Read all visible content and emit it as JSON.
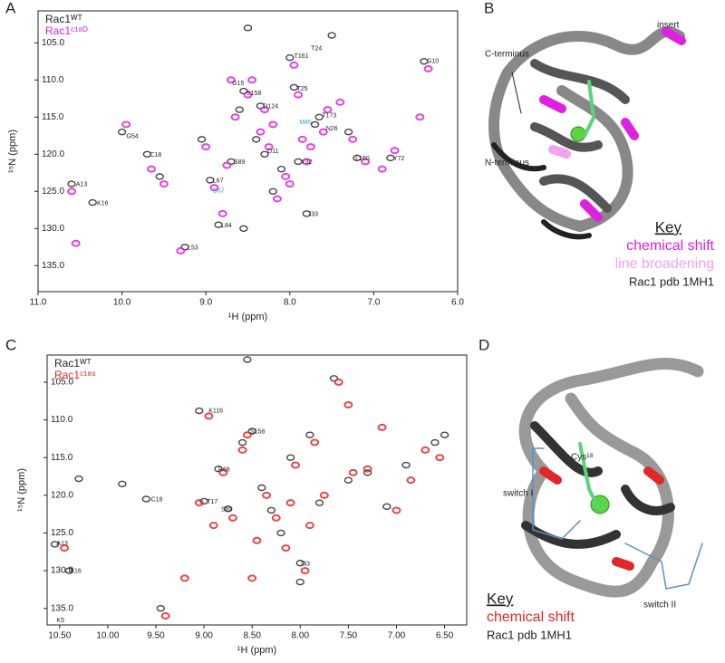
{
  "chart_data": [
    {
      "type": "scatter",
      "panel": "A",
      "xlabel": "¹H (ppm)",
      "ylabel": "¹⁵N (ppm)",
      "xlim": [
        11.0,
        6.0
      ],
      "xticks": [
        {
          "value": 11,
          "label": "11.0"
        },
        {
          "value": 10,
          "label": "10.0"
        },
        {
          "value": 9,
          "label": "9.0"
        },
        {
          "value": 8,
          "label": "8.0"
        },
        {
          "value": 7,
          "label": "7.0"
        },
        {
          "value": 6,
          "label": "6.0"
        }
      ],
      "ylim": [
        100.7,
        138.5
      ],
      "yticks": [
        {
          "value": 105,
          "label": "105.0"
        },
        {
          "value": 110,
          "label": "110.0"
        },
        {
          "value": 115,
          "label": "115.0"
        },
        {
          "value": 120,
          "label": "120.0"
        },
        {
          "value": 125,
          "label": "125.0"
        },
        {
          "value": 130,
          "label": "130.0"
        },
        {
          "value": 135,
          "label": "135.0"
        }
      ],
      "series": [
        {
          "name": "Rac1ᵂᵀ",
          "color": "#222222",
          "x": [
            10.6,
            10.35,
            10.0,
            9.7,
            9.55,
            9.25,
            9.05,
            8.95,
            8.85,
            8.7,
            8.6,
            8.55,
            8.5,
            8.4,
            8.35,
            8.3,
            8.2,
            8.1,
            8.0,
            7.95,
            7.9,
            7.8,
            7.7,
            7.65,
            7.5,
            7.3,
            7.2,
            6.8,
            6.4,
            8.55
          ],
          "values": [
            124,
            126.5,
            117,
            120,
            123,
            132.5,
            118,
            123.5,
            129.5,
            121,
            114,
            111.5,
            103,
            118,
            113.5,
            120,
            125,
            122,
            107,
            111,
            121,
            128,
            116,
            115,
            104,
            117,
            120.5,
            120.5,
            107.5,
            130
          ]
        },
        {
          "name": "Rac1ᶜ¹⁸ᴰ",
          "color": "#e020e0",
          "x": [
            10.55,
            10.6,
            9.95,
            9.65,
            9.5,
            9.3,
            9.0,
            8.9,
            8.8,
            8.75,
            8.65,
            8.5,
            8.45,
            8.35,
            8.3,
            8.25,
            8.15,
            8.05,
            7.95,
            7.9,
            7.85,
            7.75,
            7.6,
            7.55,
            7.4,
            7.25,
            7.1,
            6.9,
            6.75,
            6.45,
            6.35,
            8.7,
            8.2,
            8.0,
            7.8
          ],
          "values": [
            132,
            125,
            116,
            122,
            124,
            133,
            119,
            124.5,
            128,
            121.5,
            115,
            112,
            110,
            117,
            114,
            119,
            126,
            123,
            108,
            112,
            118,
            119,
            117,
            114,
            113,
            118,
            121,
            122,
            119.5,
            115,
            108.5,
            110,
            116,
            124,
            121
          ]
        }
      ],
      "peak_labels": [
        {
          "label": "T24",
          "x": 7.78,
          "y": 105.8
        },
        {
          "label": "T161",
          "x": 7.98,
          "y": 106.8
        },
        {
          "label": "G10",
          "x": 6.4,
          "y": 107.5
        },
        {
          "label": "G15",
          "x": 8.72,
          "y": 110.5
        },
        {
          "label": "S158",
          "x": 8.55,
          "y": 111.8
        },
        {
          "label": "T25",
          "x": 7.95,
          "y": 111.2
        },
        {
          "label": "D124",
          "x": 8.35,
          "y": 113.6
        },
        {
          "label": "M45",
          "x": 7.92,
          "y": 115.7,
          "color": "#2a9fc0"
        },
        {
          "label": "T173",
          "x": 7.65,
          "y": 114.8
        },
        {
          "label": "N26",
          "x": 7.6,
          "y": 116.6
        },
        {
          "label": "G54",
          "x": 9.98,
          "y": 117.6
        },
        {
          "label": "C18",
          "x": 9.7,
          "y": 120.1
        },
        {
          "label": "S89",
          "x": 8.7,
          "y": 121.1
        },
        {
          "label": "D11",
          "x": 8.3,
          "y": 119.6
        },
        {
          "label": "Y32",
          "x": 7.9,
          "y": 121.1
        },
        {
          "label": "L160",
          "x": 7.25,
          "y": 120.6
        },
        {
          "label": "Y72",
          "x": 6.8,
          "y": 120.6
        },
        {
          "label": "L67",
          "x": 8.95,
          "y": 123.6
        },
        {
          "label": "D57",
          "x": 8.95,
          "y": 124.9,
          "color": "#2a9fc0"
        },
        {
          "label": "A13",
          "x": 10.58,
          "y": 124.1
        },
        {
          "label": "K16",
          "x": 10.33,
          "y": 126.6
        },
        {
          "label": "I33",
          "x": 7.8,
          "y": 128.1
        },
        {
          "label": "L84",
          "x": 8.85,
          "y": 129.6
        },
        {
          "label": "L53",
          "x": 9.25,
          "y": 132.6
        }
      ]
    },
    {
      "type": "scatter",
      "panel": "C",
      "xlabel": "¹H (ppm)",
      "ylabel": "¹⁵N (ppm)",
      "xlim": [
        10.63,
        6.27
      ],
      "xticks": [
        {
          "value": 10.5,
          "label": "10.50"
        },
        {
          "value": 10,
          "label": "10.00"
        },
        {
          "value": 9.5,
          "label": "9.50"
        },
        {
          "value": 9,
          "label": "9.00"
        },
        {
          "value": 8.5,
          "label": "8.50"
        },
        {
          "value": 8,
          "label": "8.00"
        },
        {
          "value": 7.5,
          "label": "7.50"
        },
        {
          "value": 7,
          "label": "7.00"
        },
        {
          "value": 6.5,
          "label": "6.50"
        }
      ],
      "ylim": [
        101.4,
        137.2
      ],
      "yticks": [
        {
          "value": 105,
          "label": "105.0"
        },
        {
          "value": 110,
          "label": "110.0"
        },
        {
          "value": 115,
          "label": "115.0"
        },
        {
          "value": 120,
          "label": "120.0"
        },
        {
          "value": 125,
          "label": "125.0"
        },
        {
          "value": 130,
          "label": "130.0"
        },
        {
          "value": 135,
          "label": "135.0"
        }
      ],
      "series": [
        {
          "name": "Rac1ᵂᵀ",
          "color": "#222222",
          "x": [
            10.55,
            10.4,
            10.3,
            9.85,
            9.6,
            9.45,
            9.05,
            9.0,
            8.85,
            8.75,
            8.6,
            8.5,
            8.4,
            8.3,
            8.2,
            8.1,
            8.0,
            7.9,
            7.8,
            7.65,
            7.5,
            7.3,
            7.1,
            6.9,
            6.6,
            6.5,
            8.55,
            8.0
          ],
          "values": [
            126.5,
            130,
            117.8,
            118.5,
            120.5,
            135,
            108.8,
            120.8,
            116.5,
            121.8,
            113,
            111.5,
            119,
            122,
            125,
            115,
            129,
            112,
            121,
            104.5,
            118,
            117,
            121.5,
            116,
            113,
            112,
            102,
            131.5
          ]
        },
        {
          "name": "Rac1ᶜ¹⁸ˢ",
          "color": "#e02828",
          "x": [
            10.45,
            9.4,
            9.2,
            9.05,
            8.95,
            8.8,
            8.7,
            8.6,
            8.55,
            8.45,
            8.35,
            8.25,
            8.15,
            8.05,
            7.95,
            7.85,
            7.75,
            7.6,
            7.45,
            7.3,
            7.15,
            7.0,
            6.85,
            6.7,
            6.55,
            8.9,
            8.5,
            8.1,
            7.9,
            7.5
          ],
          "values": [
            127,
            136,
            131,
            121,
            109.5,
            117,
            123,
            114,
            112,
            126,
            120,
            123,
            127,
            116,
            130,
            113,
            120,
            105,
            117,
            116.5,
            111,
            122,
            118,
            114,
            115,
            124,
            131,
            121,
            124,
            108
          ]
        }
      ],
      "peak_labels": [
        {
          "label": "K116",
          "x": 8.98,
          "y": 108.8
        },
        {
          "label": "S158",
          "x": 8.55,
          "y": 111.6
        },
        {
          "label": "R68",
          "x": 8.88,
          "y": 116.6
        },
        {
          "label": "T17",
          "x": 9.0,
          "y": 120.9
        },
        {
          "label": "S89",
          "x": 8.85,
          "y": 121.9
        },
        {
          "label": "C18",
          "x": 9.58,
          "y": 120.6
        },
        {
          "label": "A13",
          "x": 10.56,
          "y": 126.4
        },
        {
          "label": "K16",
          "x": 10.42,
          "y": 130.1
        },
        {
          "label": "K5",
          "x": 10.56,
          "y": 136.6
        },
        {
          "label": "I33",
          "x": 8.02,
          "y": 129.1
        }
      ]
    }
  ],
  "structures": [
    {
      "panel": "B",
      "labels": [
        "insert",
        "C-terminus",
        "N-terminus"
      ],
      "key_title": "Key",
      "key": [
        {
          "text": "chemical shift",
          "color": "#e020e0"
        },
        {
          "text": "line broadening",
          "color": "#f2a2ee"
        },
        {
          "text": "Rac1 pdb 1MH1",
          "color": "#222222"
        }
      ]
    },
    {
      "panel": "D",
      "labels": [
        "Cys¹⁸",
        "switch I",
        "switch II"
      ],
      "key_title": "Key",
      "key": [
        {
          "text": "chemical shift",
          "color": "#e02828"
        },
        {
          "text": "Rac1 pdb 1MH1",
          "color": "#222222"
        }
      ]
    }
  ]
}
